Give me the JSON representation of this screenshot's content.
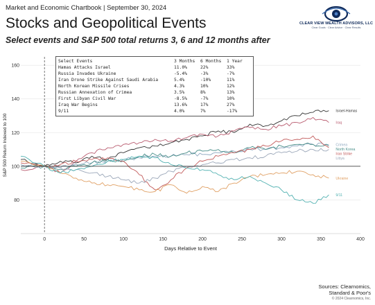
{
  "header": {
    "title": "Market and Economic Chartbook | September 30, 2024"
  },
  "logo": {
    "name": "CLEAR VIEW WEALTH ADVISORS, LLC",
    "tagline": "Clear Goals · Clear Advice · Clear Results"
  },
  "source": {
    "line1": "Sources: Clearnomics,",
    "line2": "Standard & Poor's",
    "copyright": "© 2024 Clearnomics, Inc."
  },
  "table": {
    "headers": [
      "Select Events",
      "3 Months",
      "6 Months",
      "1 Year"
    ],
    "rows": [
      [
        "Hamas Attacks Israel",
        "11.0%",
        "22%",
        "33%"
      ],
      [
        "Russia Invades Ukraine",
        "-5.4%",
        "-3%",
        "-7%"
      ],
      [
        "Iran Drone Strike Against Saudi Arabia",
        "5.4%",
        "-10%",
        "11%"
      ],
      [
        "North Korean Missile Crises",
        "4.3%",
        "10%",
        "12%"
      ],
      [
        "Russian Annexation of Crimea",
        "3.5%",
        "8%",
        "13%"
      ],
      [
        "First Libyan Civil War",
        "-8.5%",
        "-7%",
        "10%"
      ],
      [
        "Iraq War Begins",
        "13.6%",
        "17%",
        "27%"
      ],
      [
        "9/11",
        "4.0%",
        "7%",
        "-17%"
      ]
    ]
  },
  "chart_data": {
    "type": "line",
    "title": "Stocks and Geopolitical Events",
    "subtitle": "Select events and S&P 500 total returns 3, 6 and 12 months after",
    "xlabel": "Days Relative to Event",
    "ylabel": "S&P 500 Return Indexed to 100",
    "xlim": [
      -30,
      400
    ],
    "ylim": [
      60,
      165
    ],
    "xticks": [
      0,
      50,
      100,
      150,
      200,
      250,
      300,
      350,
      400
    ],
    "yticks": [
      80,
      100,
      120,
      140,
      160
    ],
    "baseline": 100,
    "series": [
      {
        "name": "Israel-Hamas",
        "color": "#333333",
        "x": [
          -30,
          0,
          20,
          40,
          60,
          80,
          100,
          120,
          140,
          160,
          180,
          200,
          220,
          240,
          260,
          280,
          300,
          320,
          340,
          360
        ],
        "y": [
          104,
          100,
          103,
          102,
          106,
          104,
          108,
          111,
          112,
          114,
          116,
          118,
          121,
          120,
          125,
          124,
          127,
          130,
          132,
          133
        ]
      },
      {
        "name": "Iraq",
        "color": "#b85a6e",
        "x": [
          -30,
          0,
          20,
          40,
          60,
          80,
          100,
          120,
          140,
          160,
          180,
          200,
          220,
          240,
          260,
          280,
          300,
          320,
          340,
          360
        ],
        "y": [
          98,
          100,
          96,
          103,
          108,
          111,
          113,
          114,
          116,
          115,
          117,
          119,
          118,
          121,
          123,
          122,
          124,
          126,
          129,
          126
        ]
      },
      {
        "name": "Crimea",
        "color": "#8fa8c0",
        "x": [
          -30,
          0,
          20,
          40,
          60,
          80,
          100,
          120,
          140,
          160,
          180,
          200,
          220,
          240,
          260,
          280,
          300,
          320,
          340,
          360
        ],
        "y": [
          101,
          100,
          99,
          101,
          102,
          103,
          104,
          105,
          106,
          106,
          107,
          107,
          108,
          109,
          110,
          110,
          111,
          112,
          113,
          113
        ]
      },
      {
        "name": "North Korea",
        "color": "#4a8f8a",
        "x": [
          -30,
          0,
          20,
          40,
          60,
          80,
          100,
          120,
          140,
          160,
          180,
          200,
          220,
          240,
          260,
          280,
          300,
          320,
          340,
          360
        ],
        "y": [
          99,
          100,
          98,
          100,
          102,
          104,
          103,
          106,
          107,
          106,
          108,
          109,
          110,
          108,
          111,
          110,
          112,
          113,
          113,
          112
        ]
      },
      {
        "name": "Iran Strike",
        "color": "#c25a5a",
        "x": [
          -30,
          0,
          20,
          40,
          60,
          80,
          100,
          120,
          140,
          160,
          180,
          200,
          220,
          240,
          260,
          280,
          300,
          320,
          340,
          360
        ],
        "y": [
          102,
          100,
          101,
          103,
          104,
          105,
          103,
          95,
          86,
          92,
          99,
          103,
          106,
          108,
          110,
          112,
          115,
          116,
          118,
          111
        ]
      },
      {
        "name": "Libya",
        "color": "#9aa6b8",
        "x": [
          -30,
          0,
          20,
          40,
          60,
          80,
          100,
          120,
          140,
          160,
          180,
          200,
          220,
          240,
          260,
          280,
          300,
          320,
          340,
          360
        ],
        "y": [
          100,
          100,
          99,
          98,
          96,
          94,
          92,
          90,
          93,
          97,
          100,
          101,
          102,
          104,
          105,
          106,
          108,
          109,
          110,
          110
        ]
      },
      {
        "name": "Ukraine",
        "color": "#e0a064",
        "x": [
          -30,
          0,
          20,
          40,
          60,
          80,
          100,
          120,
          140,
          160,
          180,
          200,
          220,
          240,
          260,
          280,
          300,
          320,
          340,
          360
        ],
        "y": [
          103,
          100,
          96,
          93,
          90,
          89,
          88,
          86,
          85,
          89,
          84,
          88,
          85,
          90,
          94,
          95,
          96,
          97,
          95,
          93
        ]
      },
      {
        "name": "9/11",
        "color": "#4fb0b0",
        "x": [
          -30,
          0,
          20,
          40,
          60,
          80,
          100,
          120,
          140,
          160,
          180,
          200,
          220,
          240,
          260,
          280,
          300,
          320,
          340,
          360
        ],
        "y": [
          106,
          100,
          96,
          98,
          100,
          103,
          104,
          106,
          105,
          101,
          99,
          98,
          95,
          92,
          94,
          90,
          86,
          80,
          78,
          83
        ]
      }
    ]
  }
}
